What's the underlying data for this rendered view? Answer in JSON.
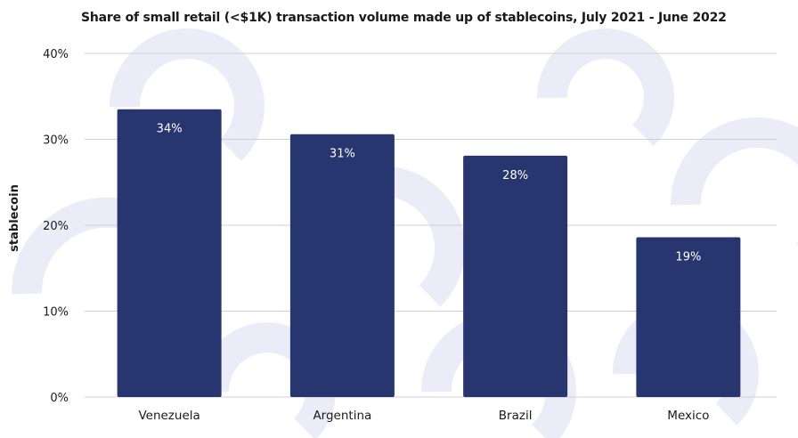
{
  "chart_data": {
    "type": "bar",
    "title": "Share of small retail (<$1K) transaction volume made up of stablecoins, July 2021 - June 2022",
    "xlabel": "",
    "ylabel": "stablecoin",
    "categories": [
      "Venezuela",
      "Argentina",
      "Brazil",
      "Mexico"
    ],
    "values": [
      33.5,
      30.6,
      28.1,
      18.6
    ],
    "data_labels": [
      "34%",
      "31%",
      "28%",
      "19%"
    ],
    "ylim": [
      0,
      40
    ],
    "yticks": [
      0,
      10,
      20,
      30,
      40
    ],
    "ytick_labels": [
      "0%",
      "10%",
      "20%",
      "30%",
      "40%"
    ],
    "grid": true,
    "legend": "none",
    "colors": {
      "bar": "#283670",
      "grid": "#d0d0d0",
      "watermark": "#ecebf8"
    }
  }
}
